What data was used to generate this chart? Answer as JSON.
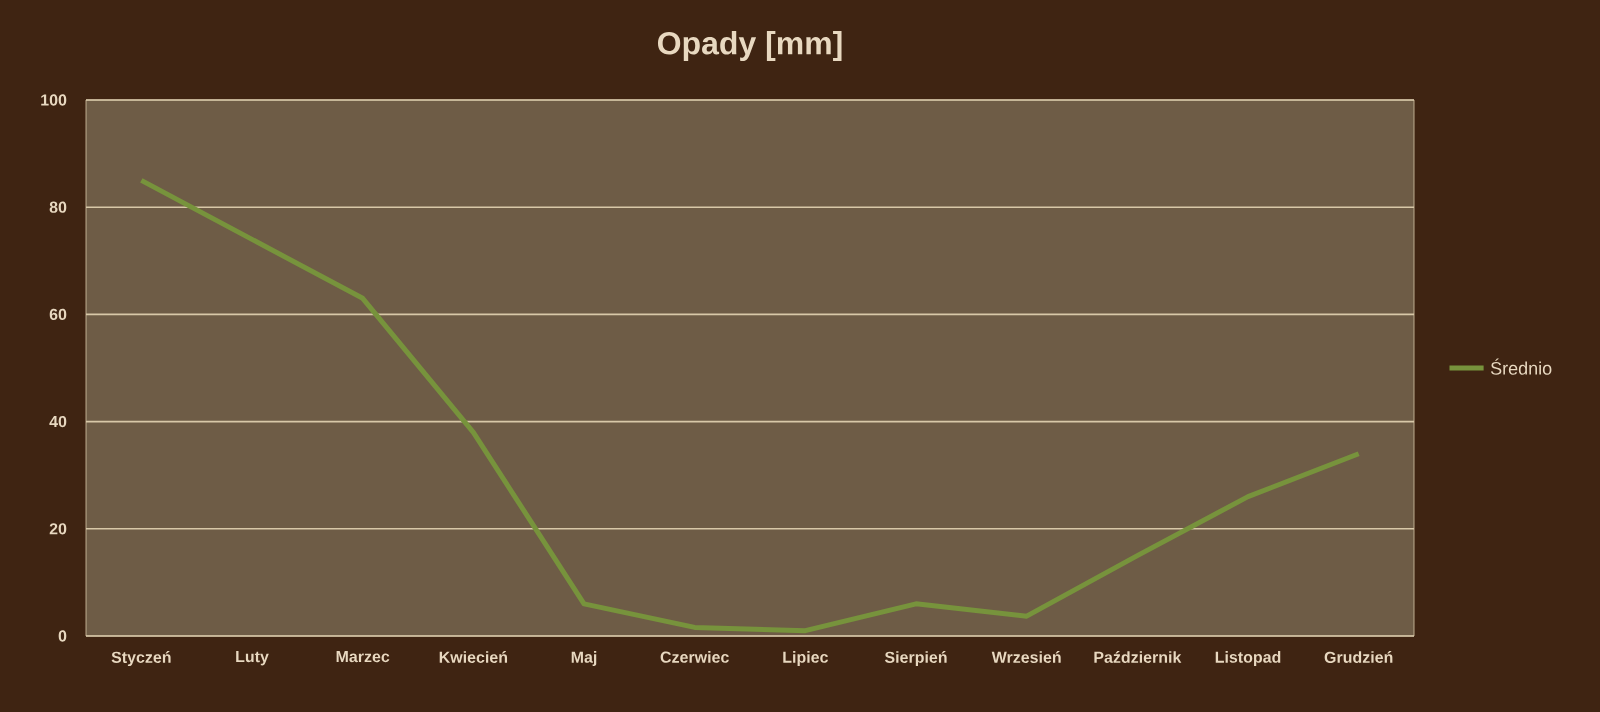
{
  "chart_data": {
    "type": "line",
    "title": "Opady [mm]",
    "categories": [
      "Styczeń",
      "Luty",
      "Marzec",
      "Kwiecień",
      "Maj",
      "Czerwiec",
      "Lipiec",
      "Sierpień",
      "Wrzesień",
      "Październik",
      "Listopad",
      "Grudzień"
    ],
    "series": [
      {
        "name": "Średnio",
        "color": "#77933c",
        "values": [
          85,
          74,
          63,
          38,
          6,
          1.6,
          1,
          6,
          3.7,
          15,
          26,
          34
        ]
      }
    ],
    "ylim": [
      0,
      100
    ],
    "yticks": [
      0,
      20,
      40,
      60,
      80,
      100
    ],
    "grid": "y",
    "legend": "right",
    "marker": "none",
    "line_style": "solid"
  }
}
